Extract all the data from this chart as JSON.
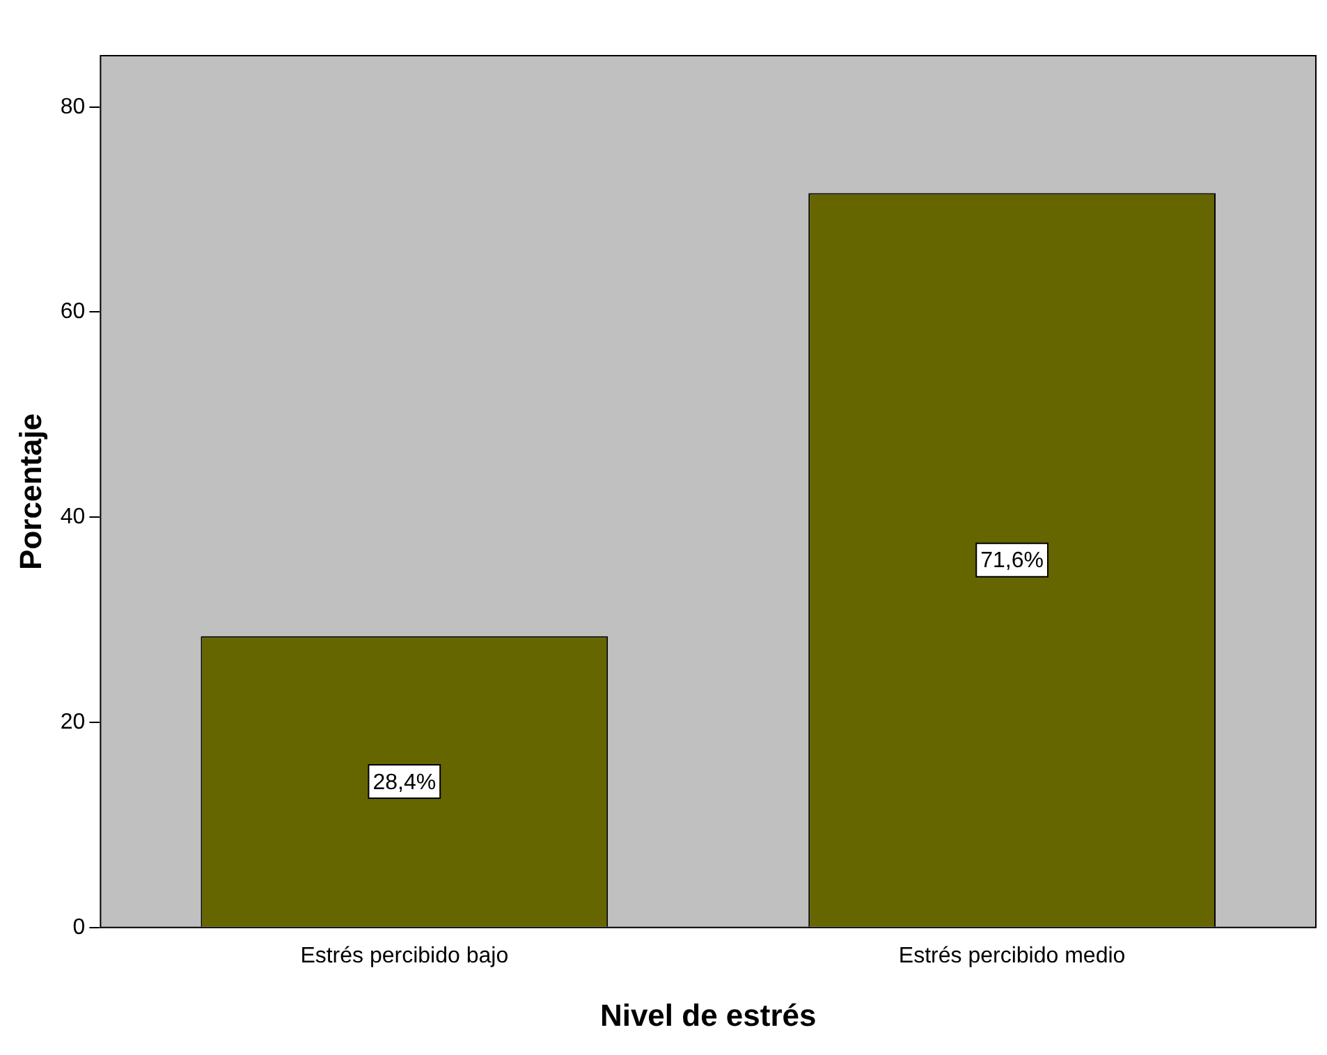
{
  "chart_data": {
    "type": "bar",
    "xlabel": "Nivel de estrés",
    "ylabel": "Porcentaje",
    "categories": [
      "Estrés percibido bajo",
      "Estrés percibido medio"
    ],
    "values": [
      28.4,
      71.6
    ],
    "color": "#666600",
    "value_labels": [
      "28,4%",
      "71,6%"
    ],
    "ylim": [
      0,
      85
    ],
    "yticks": [
      0,
      20,
      40,
      60,
      80
    ],
    "grid": false,
    "legend": false
  }
}
